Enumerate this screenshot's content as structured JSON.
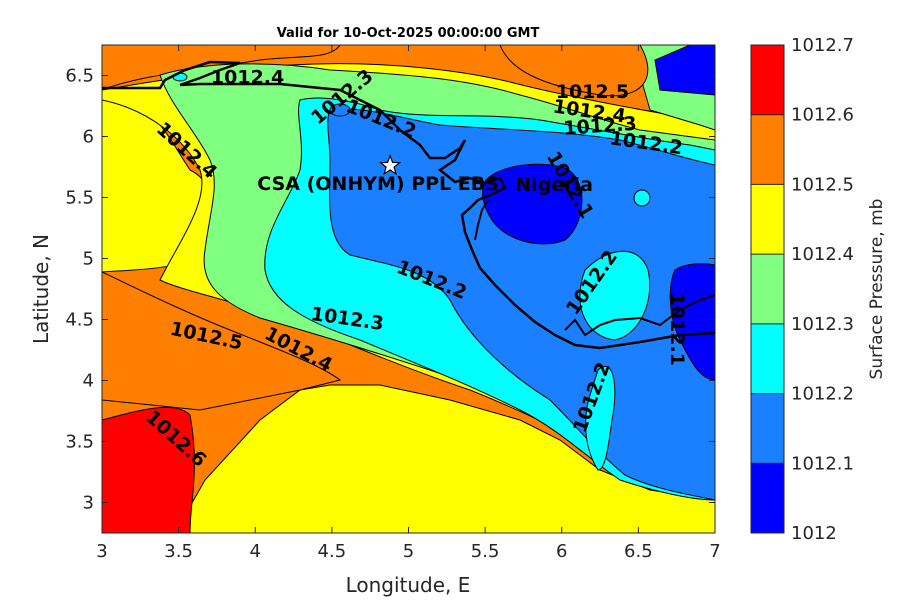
{
  "chart_data": {
    "type": "heatmap",
    "subtype": "filled-contour-map",
    "title": "Valid for 10-Oct-2025 00:00:00 GMT",
    "xlabel": "Longitude, E",
    "ylabel": "Latitude, N",
    "xlim": [
      3,
      7
    ],
    "ylim": [
      2.75,
      6.75
    ],
    "x_ticks": [
      3,
      3.5,
      4,
      4.5,
      5,
      5.5,
      6,
      6.5,
      7
    ],
    "y_ticks": [
      3,
      3.5,
      4,
      4.5,
      5,
      5.5,
      6,
      6.5
    ],
    "x_tick_labels": [
      "3",
      "3.5",
      "4",
      "4.5",
      "5",
      "5.5",
      "6",
      "6.5",
      "7"
    ],
    "y_tick_labels": [
      "3",
      "3.5",
      "4",
      "4.5",
      "5",
      "5.5",
      "6",
      "6.5"
    ],
    "colorbar": {
      "label": "Surface Pressure, mb",
      "levels": [
        1012,
        1012.1,
        1012.2,
        1012.3,
        1012.4,
        1012.5,
        1012.6,
        1012.7
      ],
      "level_labels": [
        "1012",
        "1012.1",
        "1012.2",
        "1012.3",
        "1012.4",
        "1012.5",
        "1012.6",
        "1012.7"
      ],
      "colors": [
        "#0000ff",
        "#1a80ff",
        "#00ffff",
        "#80ff80",
        "#ffff00",
        "#ff8000",
        "#ff0000",
        "#800000"
      ]
    },
    "contour_labels": [
      {
        "text": "1012.4",
        "lon": 3.95,
        "lat": 6.48,
        "angle": 0
      },
      {
        "text": "1012.3",
        "lon": 4.57,
        "lat": 6.32,
        "angle": -40
      },
      {
        "text": "1012.2",
        "lon": 4.82,
        "lat": 6.14,
        "angle": 22
      },
      {
        "text": "1012.4",
        "lon": 3.55,
        "lat": 5.88,
        "angle": 42
      },
      {
        "text": "1012.5",
        "lon": 6.2,
        "lat": 6.36,
        "angle": 0
      },
      {
        "text": "1012.4",
        "lon": 6.18,
        "lat": 6.2,
        "angle": 8
      },
      {
        "text": "1012.3",
        "lon": 6.25,
        "lat": 6.08,
        "angle": -4
      },
      {
        "text": "1012.2",
        "lon": 6.55,
        "lat": 5.94,
        "angle": 8
      },
      {
        "text": "1012.1",
        "lon": 6.05,
        "lat": 5.6,
        "angle": 60
      },
      {
        "text": "1012.2",
        "lon": 5.15,
        "lat": 4.82,
        "angle": 22
      },
      {
        "text": "1012.2",
        "lon": 6.2,
        "lat": 4.8,
        "angle": -55
      },
      {
        "text": "1012.3",
        "lon": 4.6,
        "lat": 4.5,
        "angle": 8
      },
      {
        "text": "1012.5",
        "lon": 3.68,
        "lat": 4.36,
        "angle": 12
      },
      {
        "text": "1012.4",
        "lon": 4.28,
        "lat": 4.25,
        "angle": 28
      },
      {
        "text": "1012.1",
        "lon": 6.75,
        "lat": 4.42,
        "angle": 90
      },
      {
        "text": "1012.2",
        "lon": 6.2,
        "lat": 3.86,
        "angle": -70
      },
      {
        "text": "1012.6",
        "lon": 3.48,
        "lat": 3.52,
        "angle": 42
      }
    ],
    "markers": [
      {
        "text": "CSA (ONHYM) PPL EBS",
        "lon": 4.88,
        "lat": 5.76,
        "symbol": "star"
      },
      {
        "text": "Nigeria",
        "lon": 5.95,
        "lat": 5.62,
        "symbol": "none"
      }
    ],
    "region_field": [
      {
        "value_band": [
          1012.3,
          1012.4
        ],
        "lon_lat": [
          [
            4.15,
            5.4
          ],
          [
            4.2,
            5.95
          ],
          [
            4.4,
            6.4
          ],
          [
            3.8,
            6.52
          ],
          [
            3.35,
            6.62
          ],
          [
            3.4,
            6.0
          ],
          [
            3.65,
            5.55
          ],
          [
            3.62,
            4.9
          ],
          [
            4.1,
            4.72
          ],
          [
            4.35,
            4.6
          ],
          [
            4.6,
            4.42
          ],
          [
            4.3,
            4.7
          ],
          [
            4.0,
            5.1
          ]
        ]
      }
    ]
  }
}
